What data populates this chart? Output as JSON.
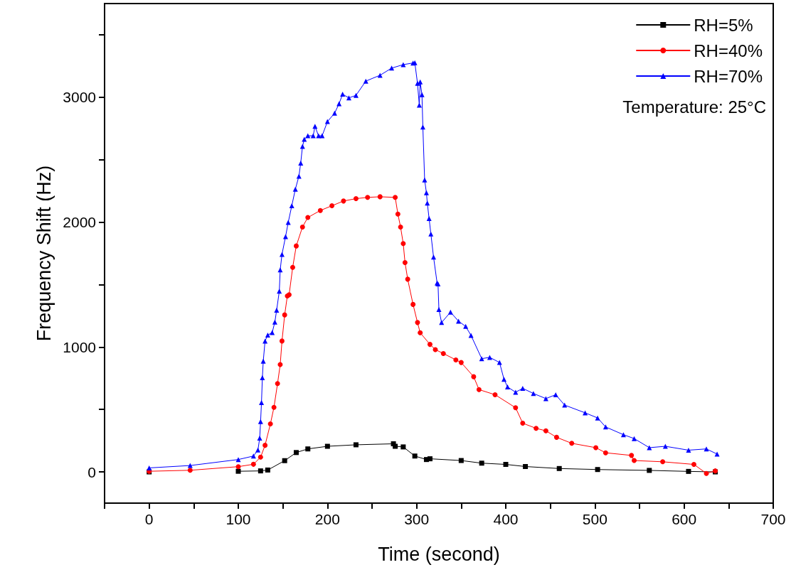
{
  "chart_data": {
    "type": "line",
    "xlabel": "Time (second)",
    "ylabel": "Frequency Shift (Hz)",
    "xlim": [
      -50,
      700
    ],
    "xticks": [
      {
        "value": -50,
        "label": null
      },
      0,
      {
        "value": 50,
        "label": null
      },
      100,
      {
        "value": 150,
        "label": null
      },
      200,
      {
        "value": 250,
        "label": null
      },
      300,
      {
        "value": 350,
        "label": null
      },
      400,
      {
        "value": 450,
        "label": null
      },
      500,
      {
        "value": 550,
        "label": null
      },
      600,
      {
        "value": 650,
        "label": null
      },
      700
    ],
    "ylim": [
      -250,
      3750
    ],
    "yticks": [
      0,
      {
        "value": 500,
        "label": null
      },
      1000,
      {
        "value": 1500,
        "label": null
      },
      2000,
      {
        "value": 2500,
        "label": null
      },
      3000,
      {
        "value": 3500,
        "label": null
      }
    ],
    "grid": false,
    "legend": "top right",
    "line_style": "solid",
    "annotations": [
      "Temperature: 25°C"
    ],
    "series": [
      {
        "name": "RH=5%",
        "color": "#000000",
        "marker": "square",
        "x": [
          0,
          46,
          100,
          125,
          133,
          152,
          165,
          178,
          200,
          232,
          274,
          276,
          285,
          298,
          311,
          315,
          350,
          373,
          400,
          422,
          460,
          503,
          561,
          605,
          635
        ],
        "values": [
          0,
          null,
          5,
          8,
          15,
          90,
          155,
          184,
          205,
          217,
          225,
          205,
          200,
          127,
          99,
          105,
          91,
          70,
          60,
          43,
          27,
          19,
          12,
          4,
          0
        ]
      },
      {
        "name": "RH=40%",
        "color": "#ff0000",
        "marker": "circle",
        "x": [
          0,
          46,
          100,
          117,
          125,
          130,
          136,
          140,
          144,
          147,
          149,
          152,
          155,
          157,
          161,
          165,
          172,
          178,
          192,
          205,
          218,
          232,
          245,
          259,
          276,
          279,
          282,
          285,
          287,
          290,
          296,
          301,
          304,
          315,
          321,
          330,
          344,
          350,
          364,
          370,
          388,
          411,
          419,
          434,
          445,
          457,
          474,
          501,
          512,
          541,
          544,
          576,
          611,
          625,
          635
        ],
        "values": [
          5,
          13,
          42,
          61,
          118,
          213,
          384,
          517,
          707,
          859,
          1048,
          1257,
          1409,
          1419,
          1638,
          1809,
          1961,
          2037,
          2093,
          2131,
          2169,
          2188,
          2198,
          2203,
          2198,
          2064,
          1961,
          1828,
          1676,
          1543,
          1341,
          1196,
          1114,
          1021,
          979,
          948,
          897,
          876,
          762,
          659,
          618,
          514,
          390,
          349,
          329,
          277,
          229,
          194,
          153,
          132,
          91,
          81,
          60,
          -12,
          8
        ]
      },
      {
        "name": "RH=70%",
        "color": "#0000ff",
        "marker": "triangle",
        "x": [
          0,
          46,
          100,
          117,
          122,
          124,
          125,
          126,
          127,
          128,
          130,
          133,
          138,
          141,
          143,
          146,
          147,
          149,
          153,
          156,
          160,
          164,
          168,
          170,
          172,
          174,
          178,
          184,
          186,
          190,
          194,
          200,
          208,
          213,
          217,
          224,
          232,
          243,
          259,
          272,
          285,
          296,
          298,
          301,
          303,
          304,
          306,
          307,
          309,
          311,
          312,
          314,
          316,
          319,
          323,
          324,
          325,
          328,
          338,
          347,
          355,
          361,
          373,
          382,
          393,
          398,
          402,
          411,
          419,
          431,
          445,
          456,
          466,
          489,
          503,
          512,
          532,
          544,
          561,
          579,
          605,
          625,
          637
        ],
        "values": [
          32,
          51,
          99,
          127,
          175,
          270,
          403,
          555,
          754,
          887,
          1048,
          1096,
          1115,
          1200,
          1295,
          1447,
          1618,
          1742,
          1884,
          1998,
          2131,
          2264,
          2368,
          2473,
          2606,
          2663,
          2691,
          2691,
          2767,
          2691,
          2691,
          2805,
          2872,
          2948,
          3024,
          2995,
          3015,
          3129,
          3176,
          3233,
          3261,
          3274,
          3276,
          3111,
          2937,
          3123,
          3020,
          2762,
          2338,
          2235,
          2152,
          2029,
          1905,
          1720,
          1512,
          1506,
          1300,
          1196,
          1279,
          1207,
          1165,
          1093,
          907,
          917,
          876,
          742,
          680,
          638,
          669,
          628,
          587,
          618,
          535,
          473,
          432,
          360,
          298,
          267,
          194,
          205,
          174,
          184,
          143
        ]
      }
    ]
  }
}
